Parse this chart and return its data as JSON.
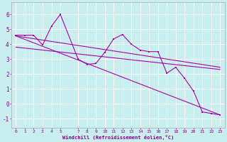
{
  "background_color": "#c8eef0",
  "grid_color": "#ffffff",
  "line_color": "#aa00aa",
  "xlim": [
    -0.5,
    23.5
  ],
  "ylim": [
    -1.6,
    6.8
  ],
  "yticks": [
    -1,
    0,
    1,
    2,
    3,
    4,
    5,
    6
  ],
  "xticks": [
    0,
    1,
    2,
    3,
    4,
    5,
    7,
    8,
    9,
    10,
    11,
    12,
    13,
    14,
    15,
    16,
    17,
    18,
    19,
    20,
    21,
    22,
    23
  ],
  "xlabel": "Windchill (Refroidissement éolien,°C)",
  "series_x": [
    0,
    1,
    2,
    3,
    4,
    5,
    7,
    8,
    9,
    10,
    11,
    12,
    13,
    14,
    15,
    16,
    17,
    18,
    19,
    20,
    21,
    22,
    23
  ],
  "series_y": [
    4.6,
    4.6,
    4.6,
    3.95,
    5.2,
    6.0,
    3.0,
    2.65,
    2.7,
    3.45,
    4.35,
    4.65,
    4.0,
    3.6,
    3.5,
    3.5,
    2.05,
    2.45,
    1.7,
    0.85,
    -0.55,
    -0.65,
    -0.75
  ],
  "trend1_x": [
    0,
    23
  ],
  "trend1_y": [
    4.55,
    2.45
  ],
  "trend2_x": [
    0,
    23
  ],
  "trend2_y": [
    4.55,
    -0.75
  ],
  "trend3_x": [
    0,
    23
  ],
  "trend3_y": [
    3.8,
    2.3
  ]
}
